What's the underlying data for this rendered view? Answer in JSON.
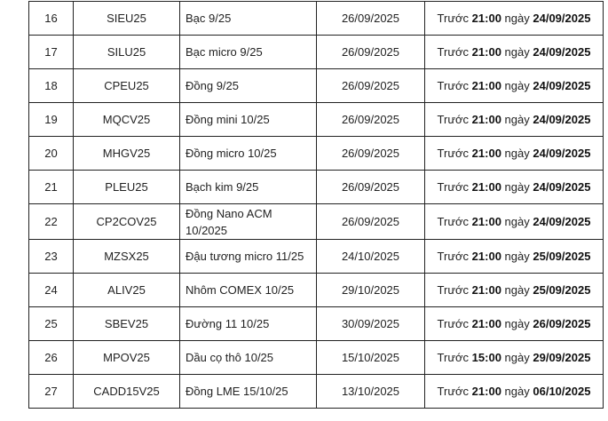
{
  "rows": [
    {
      "no": "16",
      "code": "SIEU25",
      "name": "Bạc 9/25",
      "date": "26/09/2025",
      "prefix": "Trước",
      "time": "21:00",
      "mid": "ngày",
      "deadline": "24/09/2025"
    },
    {
      "no": "17",
      "code": "SILU25",
      "name": "Bạc micro 9/25",
      "date": "26/09/2025",
      "prefix": "Trước",
      "time": "21:00",
      "mid": "ngày",
      "deadline": "24/09/2025"
    },
    {
      "no": "18",
      "code": "CPEU25",
      "name": "Đồng 9/25",
      "date": "26/09/2025",
      "prefix": "Trước",
      "time": "21:00",
      "mid": "ngày",
      "deadline": "24/09/2025"
    },
    {
      "no": "19",
      "code": "MQCV25",
      "name": "Đồng mini 10/25",
      "date": "26/09/2025",
      "prefix": "Trước",
      "time": "21:00",
      "mid": "ngày",
      "deadline": "24/09/2025"
    },
    {
      "no": "20",
      "code": "MHGV25",
      "name": "Đồng micro 10/25",
      "date": "26/09/2025",
      "prefix": "Trước",
      "time": "21:00",
      "mid": "ngày",
      "deadline": "24/09/2025"
    },
    {
      "no": "21",
      "code": "PLEU25",
      "name": "Bạch kim 9/25",
      "date": "26/09/2025",
      "prefix": "Trước",
      "time": "21:00",
      "mid": "ngày",
      "deadline": "24/09/2025"
    },
    {
      "no": "22",
      "code": "CP2COV25",
      "name": "Đồng Nano ACM 10/2025",
      "date": "26/09/2025",
      "prefix": "Trước",
      "time": "21:00",
      "mid": "ngày",
      "deadline": "24/09/2025"
    },
    {
      "no": "23",
      "code": "MZSX25",
      "name": "Đậu tương micro 11/25",
      "date": "24/10/2025",
      "prefix": "Trước",
      "time": "21:00",
      "mid": "ngày",
      "deadline": "25/09/2025"
    },
    {
      "no": "24",
      "code": "ALIV25",
      "name": "Nhôm COMEX 10/25",
      "date": "29/10/2025",
      "prefix": "Trước",
      "time": "21:00",
      "mid": "ngày",
      "deadline": "25/09/2025"
    },
    {
      "no": "25",
      "code": "SBEV25",
      "name": "Đường 11 10/25",
      "date": "30/09/2025",
      "prefix": "Trước",
      "time": "21:00",
      "mid": "ngày",
      "deadline": "26/09/2025"
    },
    {
      "no": "26",
      "code": "MPOV25",
      "name": "Dầu cọ thô 10/25",
      "date": "15/10/2025",
      "prefix": "Trước",
      "time": "15:00",
      "mid": "ngày",
      "deadline": "29/09/2025"
    },
    {
      "no": "27",
      "code": "CADD15V25",
      "name": "Đồng LME 15/10/25",
      "date": "13/10/2025",
      "prefix": "Trước",
      "time": "21:00",
      "mid": "ngày",
      "deadline": "06/10/2025"
    }
  ]
}
